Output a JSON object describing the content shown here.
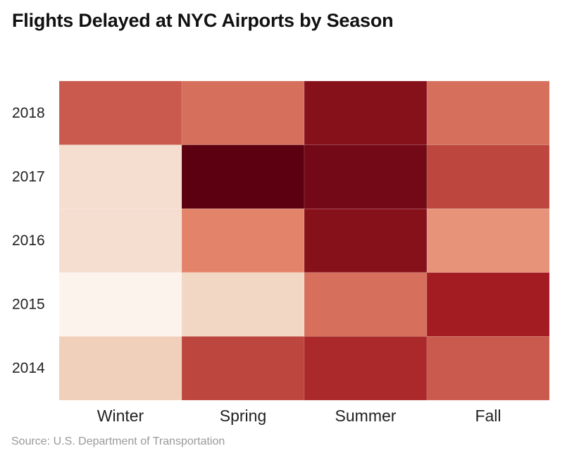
{
  "title": "Flights Delayed at NYC Airports by Season",
  "source": "Source: U.S. Department of Transportation",
  "chart_data": {
    "type": "heatmap",
    "title": "Flights Delayed at NYC Airports by Season",
    "x_categories": [
      "Winter",
      "Spring",
      "Summer",
      "Fall"
    ],
    "y_categories": [
      "2018",
      "2017",
      "2016",
      "2015",
      "2014"
    ],
    "values": [
      [
        0.6,
        0.55,
        0.85,
        0.55
      ],
      [
        0.15,
        1.0,
        0.92,
        0.65
      ],
      [
        0.15,
        0.5,
        0.85,
        0.45
      ],
      [
        0.0,
        0.2,
        0.55,
        0.75
      ],
      [
        0.25,
        0.65,
        0.72,
        0.6
      ]
    ],
    "color_scale": [
      "#fdf3ed",
      "#f0d0bb",
      "#e3846a",
      "#a31c22",
      "#5c0011"
    ],
    "legend": "none",
    "grid": false
  }
}
